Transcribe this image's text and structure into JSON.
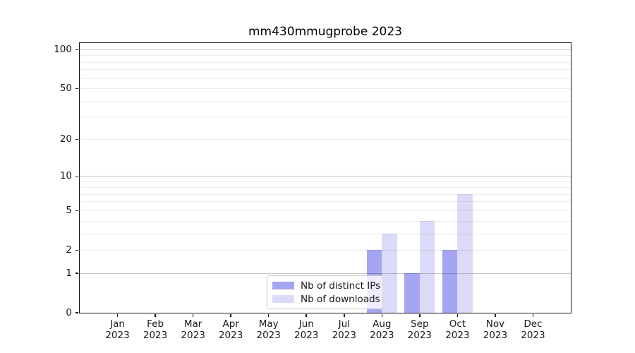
{
  "title": "mm430mmugprobe 2023",
  "chart_data": {
    "type": "bar",
    "title": "mm430mmugprobe 2023",
    "categories": [
      "Jan",
      "Feb",
      "Mar",
      "Apr",
      "May",
      "Jun",
      "Jul",
      "Aug",
      "Sep",
      "Oct",
      "Nov",
      "Dec"
    ],
    "year_label": "2023",
    "series": [
      {
        "name": "Nb of distinct IPs",
        "color": "#a5a5f2",
        "values": [
          0,
          0,
          0,
          0,
          0,
          0,
          0,
          2,
          1,
          2,
          0,
          0
        ]
      },
      {
        "name": "Nb of downloads",
        "color": "#dbdbf9",
        "values": [
          0,
          0,
          0,
          0,
          0,
          0,
          0,
          3,
          4,
          7,
          0,
          0
        ]
      }
    ],
    "yscale": "log1p",
    "yticks": [
      0,
      1,
      2,
      5,
      10,
      20,
      50,
      100
    ],
    "grid_major_ticks": [
      1,
      10,
      100
    ],
    "ylim": [
      0,
      112.6
    ],
    "grid": "horizontal",
    "legend_position": "lower center",
    "colors": {
      "axis": "#151515",
      "grid_minor": "#ededed",
      "grid_major": "#c7c7c7",
      "background": "#ffffff"
    }
  }
}
